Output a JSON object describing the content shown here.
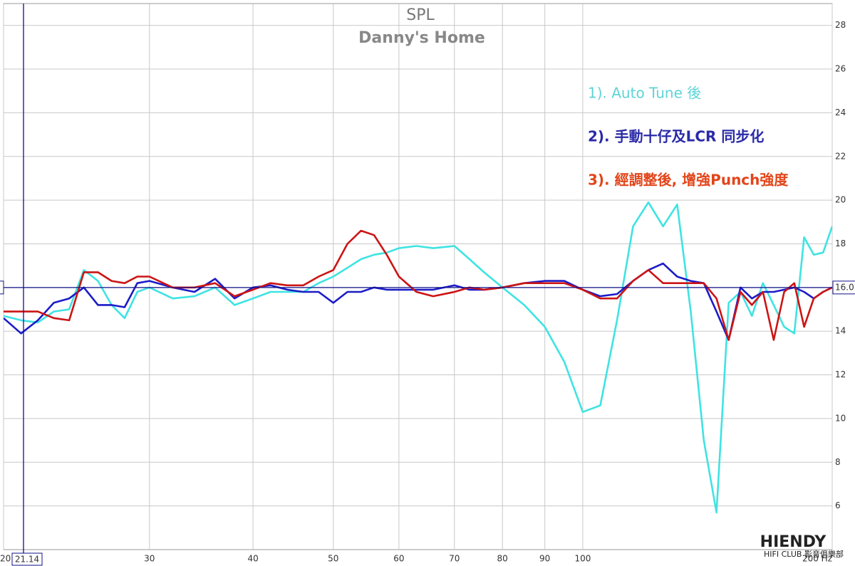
{
  "chart_data": {
    "type": "line",
    "title": "SPL",
    "subtitle": "Danny's Home",
    "x": [
      20,
      21,
      22,
      23,
      24,
      25,
      26,
      27,
      28,
      29,
      30,
      32,
      34,
      36,
      38,
      40,
      42,
      44,
      46,
      48,
      50,
      52,
      54,
      56,
      58,
      60,
      63,
      66,
      70,
      73,
      76,
      80,
      85,
      90,
      95,
      100,
      105,
      110,
      115,
      120,
      125,
      130,
      135,
      140,
      145,
      150,
      155,
      160,
      165,
      170,
      175,
      180,
      185,
      190,
      195,
      200
    ],
    "series": [
      {
        "name": "1). Auto Tune 後",
        "color": "#3fe3e3",
        "label_color": "#5fd3d6",
        "values": [
          14.7,
          14.5,
          14.4,
          14.9,
          15.0,
          16.8,
          16.3,
          15.2,
          14.6,
          15.8,
          16.0,
          15.5,
          15.6,
          16.0,
          15.2,
          15.5,
          15.8,
          15.8,
          15.8,
          16.2,
          16.5,
          16.9,
          17.3,
          17.5,
          17.6,
          17.8,
          17.9,
          17.8,
          17.9,
          17.3,
          16.7,
          16.0,
          15.2,
          14.2,
          12.6,
          10.3,
          10.6,
          14.5,
          18.8,
          19.9,
          18.8,
          19.8,
          14.9,
          9.0,
          5.7,
          15.3,
          15.8,
          14.7,
          16.2,
          15.2,
          14.2,
          13.9,
          18.3,
          17.5,
          17.6,
          18.8
        ]
      },
      {
        "name": "2). 手動十仔及LCR 同步化",
        "color": "#1c1cc8",
        "label_color": "#2a2aa8",
        "values": [
          14.6,
          13.9,
          14.5,
          15.3,
          15.5,
          16.0,
          15.2,
          15.2,
          15.1,
          16.2,
          16.3,
          16.0,
          15.8,
          16.4,
          15.5,
          16.0,
          16.1,
          15.9,
          15.8,
          15.8,
          15.3,
          15.8,
          15.8,
          16.0,
          15.9,
          15.9,
          15.9,
          15.9,
          16.1,
          15.9,
          15.9,
          16.0,
          16.2,
          16.3,
          16.3,
          15.9,
          15.6,
          15.7,
          16.3,
          16.8,
          17.1,
          16.5,
          16.3,
          16.2,
          14.9,
          13.6,
          16.0,
          15.5,
          15.8,
          15.8,
          15.9,
          16.0,
          15.8,
          15.5,
          15.8,
          16.0
        ]
      },
      {
        "name": "3). 經調整後, 增強Punch強度",
        "color": "#cc1414",
        "label_color": "#e2451a",
        "values": [
          14.9,
          14.9,
          14.9,
          14.6,
          14.5,
          16.7,
          16.7,
          16.3,
          16.2,
          16.5,
          16.5,
          16.0,
          16.0,
          16.2,
          15.6,
          15.9,
          16.2,
          16.1,
          16.1,
          16.5,
          16.8,
          18.0,
          18.6,
          18.4,
          17.5,
          16.5,
          15.8,
          15.6,
          15.8,
          16.0,
          15.9,
          16.0,
          16.2,
          16.2,
          16.2,
          15.9,
          15.5,
          15.5,
          16.3,
          16.8,
          16.2,
          16.2,
          16.2,
          16.2,
          15.5,
          13.6,
          15.8,
          15.2,
          15.8,
          13.6,
          15.8,
          16.2,
          14.2,
          15.5,
          15.8,
          16.0
        ]
      }
    ],
    "xlim": [
      20,
      200
    ],
    "xlog": true,
    "xticks": [
      20,
      30,
      40,
      50,
      60,
      70,
      80,
      90,
      100,
      {
        "value": 200,
        "label": "200 Hz"
      }
    ],
    "ylim": [
      4,
      29
    ],
    "yticks": [
      6,
      8,
      10,
      12,
      14,
      16,
      18,
      20,
      22,
      24,
      26,
      28
    ],
    "grid": true,
    "cursor": {
      "x": 21.14,
      "y": {
        "value": 16,
        "label": "16.0"
      },
      "color": "#10108a"
    },
    "watermark": {
      "brand": "HIENDY",
      "tagline": "HIFI CLUB 影音俱樂部"
    }
  }
}
